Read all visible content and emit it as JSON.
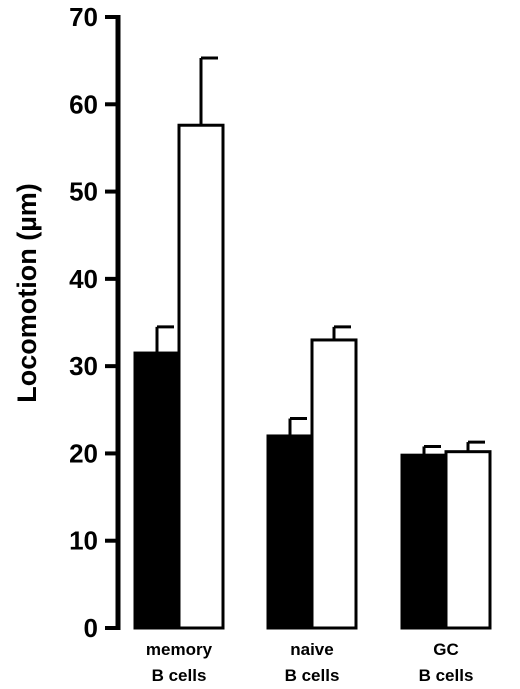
{
  "chart_data": {
    "type": "bar",
    "title": "",
    "xlabel": "",
    "ylabel": "Locomotion (µm)",
    "ylim": [
      0,
      70
    ],
    "yticks": [
      0,
      10,
      20,
      30,
      40,
      50,
      60,
      70
    ],
    "categories": [
      [
        "memory",
        "B cells"
      ],
      [
        "naive",
        "B cells"
      ],
      [
        "GC",
        "B cells"
      ]
    ],
    "series": [
      {
        "fill": "#000000",
        "values": [
          31.5,
          22.0,
          19.8
        ],
        "errors": [
          3.0,
          2.0,
          1.0
        ]
      },
      {
        "fill": "#ffffff",
        "values": [
          57.6,
          33.0,
          20.2
        ],
        "errors": [
          7.7,
          1.5,
          1.1
        ]
      }
    ],
    "grid": false,
    "legend": "none"
  }
}
